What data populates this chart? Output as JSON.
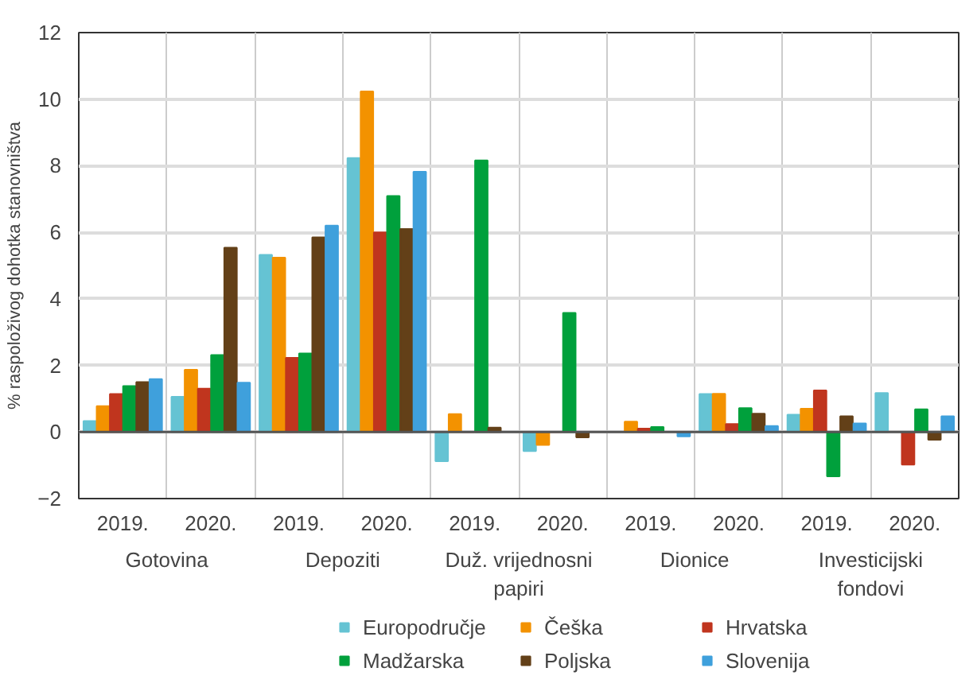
{
  "chart_data": {
    "type": "bar",
    "ylabel": "% raspoloživog dohotka stanovništva",
    "categories": [
      "2019.",
      "2020.",
      "2019.",
      "2020.",
      "2019.",
      "2020.",
      "2019.",
      "2020.",
      "2019.",
      "2020."
    ],
    "annotations": [
      "Gotovina",
      "Depoziti",
      "Duž. vrijednosni papiri",
      "Dionice",
      "Investicijski fondovi"
    ],
    "ylim": [
      -2,
      12
    ],
    "yticks": [
      {
        "value": -2,
        "label": "−2"
      },
      0,
      2,
      4,
      6,
      8,
      10,
      12
    ],
    "grid": true,
    "legend": "bottom",
    "series": [
      {
        "name": "Europodručje",
        "color": "#65c3d3",
        "values": [
          0.33,
          1.06,
          5.32,
          8.23,
          -0.88,
          -0.57,
          null,
          1.14,
          0.52,
          1.17
        ]
      },
      {
        "name": "Češka",
        "color": "#f39200",
        "values": [
          0.78,
          1.87,
          5.24,
          10.23,
          0.54,
          -0.39,
          0.31,
          1.15,
          0.7,
          null
        ]
      },
      {
        "name": "Hrvatska",
        "color": "#c0351e",
        "values": [
          1.14,
          1.3,
          2.23,
          6.0,
          0,
          0,
          0.1,
          0.24,
          1.25,
          -0.98
        ]
      },
      {
        "name": "Madžarska",
        "color": "#00a03c",
        "values": [
          1.38,
          2.31,
          2.36,
          7.09,
          8.16,
          3.58,
          0.15,
          0.72,
          -1.33,
          0.68
        ]
      },
      {
        "name": "Poljska",
        "color": "#634018",
        "values": [
          1.5,
          5.54,
          5.85,
          6.1,
          0.13,
          -0.16,
          null,
          0.55,
          0.47,
          -0.23
        ]
      },
      {
        "name": "Slovenija",
        "color": "#3fa0dc",
        "values": [
          1.59,
          1.48,
          6.2,
          7.82,
          null,
          null,
          -0.13,
          0.18,
          0.26,
          0.47
        ]
      }
    ]
  }
}
